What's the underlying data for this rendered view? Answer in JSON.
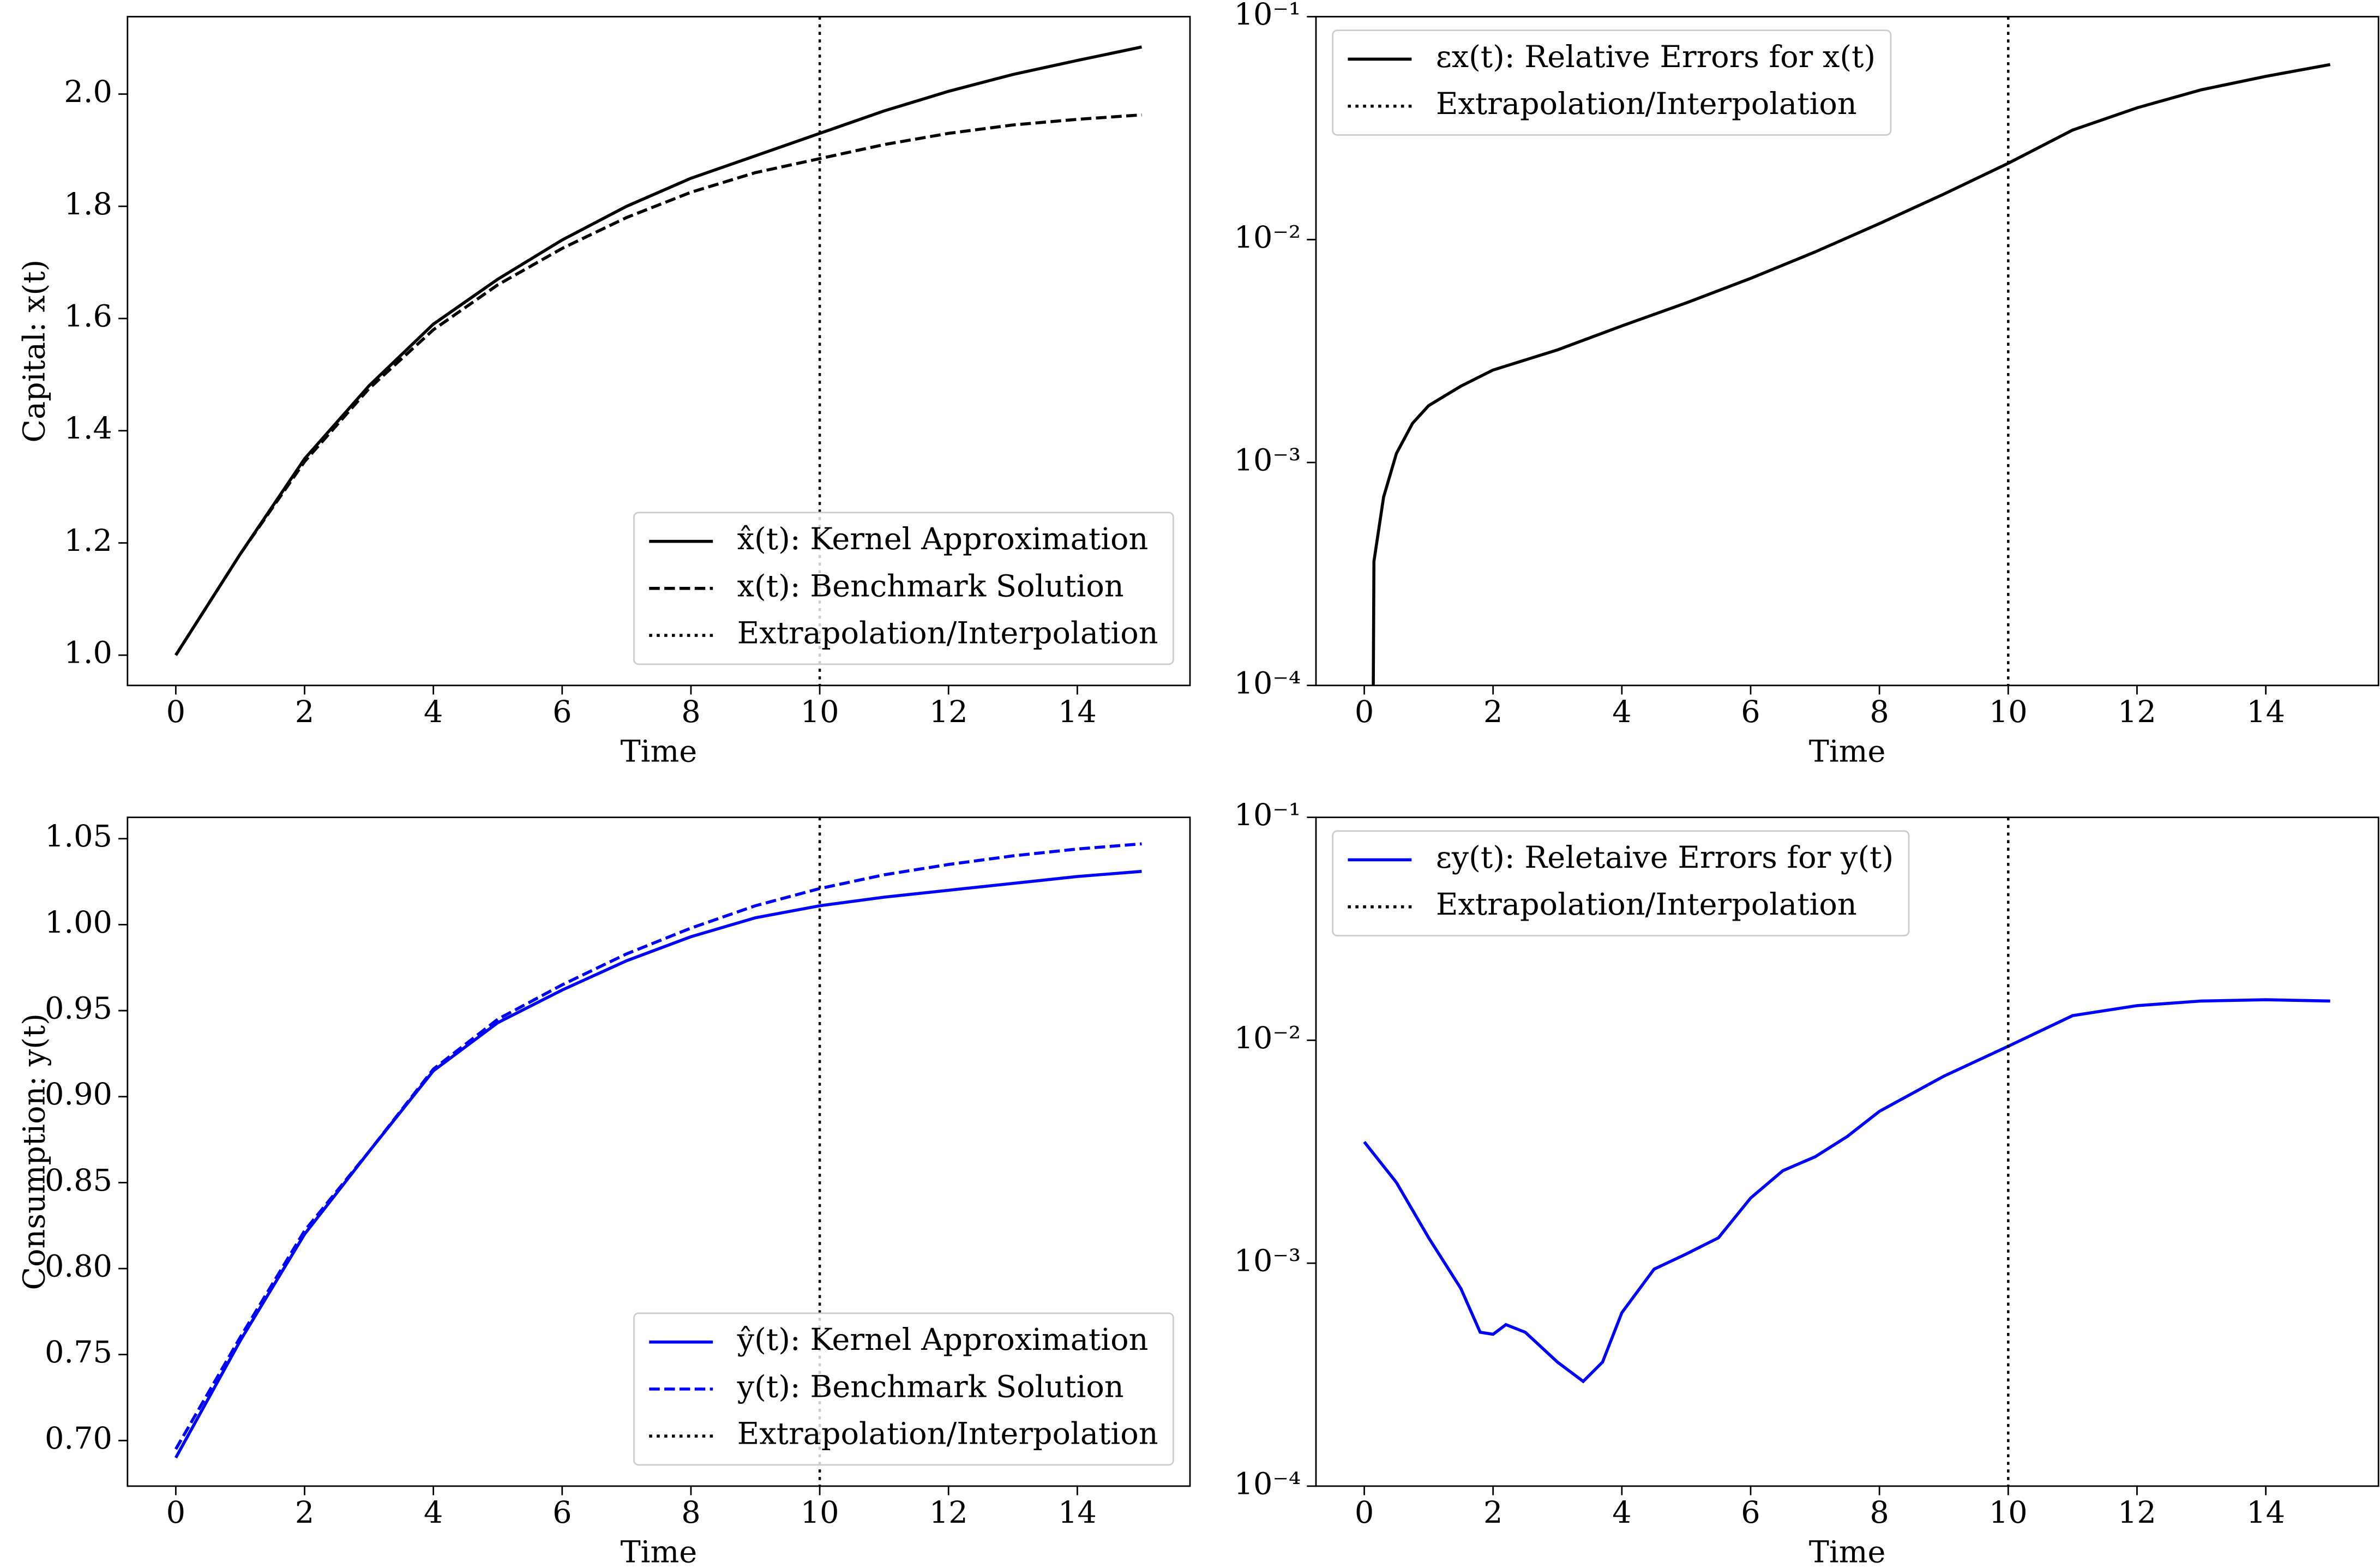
{
  "chart_data": [
    {
      "type": "line",
      "ylabel": "Capital: x(t)",
      "xlabel": "Time",
      "legend": "lower right",
      "xlim": [
        -0.75,
        15.75
      ],
      "ylim": [
        0.946,
        2.138
      ],
      "xticks": [
        0,
        2,
        4,
        6,
        8,
        10,
        12,
        14
      ],
      "yticks": [
        {
          "value": 1,
          "label": "1.0"
        },
        1.2,
        1.4,
        1.6,
        1.8,
        {
          "value": 2,
          "label": "2.0"
        }
      ],
      "x": [
        0,
        1,
        2,
        3,
        4,
        5,
        6,
        7,
        8,
        9,
        10,
        11,
        12,
        13,
        14,
        15
      ],
      "series": [
        {
          "name": "x̂(t): Kernel Approximation",
          "color": "#000000",
          "dash": "solid",
          "values": [
            1.0,
            1.18,
            1.35,
            1.48,
            1.59,
            1.67,
            1.74,
            1.8,
            1.85,
            1.89,
            1.93,
            1.97,
            2.005,
            2.035,
            2.06,
            2.084
          ]
        },
        {
          "name": "x(t): Benchmark Solution",
          "color": "#000000",
          "dash": "dashed",
          "values": [
            1.0,
            1.18,
            1.345,
            1.475,
            1.58,
            1.66,
            1.725,
            1.78,
            1.825,
            1.86,
            1.885,
            1.91,
            1.93,
            1.945,
            1.955,
            1.963
          ]
        }
      ],
      "vline": {
        "x": 10,
        "label": "Extrapolation/Interpolation",
        "color": "#000000",
        "dash": "dotted"
      }
    },
    {
      "type": "line",
      "xlabel": "Time",
      "legend": "upper left",
      "log_y": true,
      "xlim": [
        -0.75,
        15.75
      ],
      "ylim": [
        0.0001,
        0.1
      ],
      "xticks": [
        0,
        2,
        4,
        6,
        8,
        10,
        12,
        14
      ],
      "yticks": [
        {
          "value": 0.0001,
          "label": "10⁻⁴"
        },
        {
          "value": 0.001,
          "label": "10⁻³"
        },
        {
          "value": 0.01,
          "label": "10⁻²"
        },
        {
          "value": 0.1,
          "label": "10⁻¹"
        }
      ],
      "x": [
        0.14,
        0.15,
        0.3,
        0.5,
        0.75,
        1,
        1.5,
        2,
        3,
        4,
        5,
        6,
        7,
        8,
        9,
        10,
        11,
        12,
        13,
        14,
        15
      ],
      "series": [
        {
          "name": "εx(t): Relative Errors for x(t)",
          "color": "#000000",
          "dash": "solid",
          "values": [
            0.0001,
            0.00036,
            0.0007,
            0.0011,
            0.0015,
            0.0018,
            0.0022,
            0.0026,
            0.0032,
            0.0041,
            0.0052,
            0.0067,
            0.0088,
            0.0118,
            0.016,
            0.022,
            0.031,
            0.039,
            0.047,
            0.054,
            0.061
          ]
        }
      ],
      "vline": {
        "x": 10,
        "label": "Extrapolation/Interpolation",
        "color": "#000000",
        "dash": "dotted"
      }
    },
    {
      "type": "line",
      "ylabel": "Consumption: y(t)",
      "xlabel": "Time",
      "legend": "lower right",
      "xlim": [
        -0.75,
        15.75
      ],
      "ylim": [
        0.6735,
        1.0624
      ],
      "xticks": [
        0,
        2,
        4,
        6,
        8,
        10,
        12,
        14
      ],
      "yticks": [
        {
          "value": 0.7,
          "label": "0.70"
        },
        0.75,
        {
          "value": 0.8,
          "label": "0.80"
        },
        0.85,
        {
          "value": 0.9,
          "label": "0.90"
        },
        0.95,
        {
          "value": 1,
          "label": "1.00"
        },
        1.05
      ],
      "x": [
        0,
        1,
        2,
        3,
        4,
        5,
        6,
        7,
        8,
        9,
        10,
        11,
        12,
        13,
        14,
        15
      ],
      "series": [
        {
          "name": "ŷ(t): Kernel Approximation",
          "color": "#0000ff",
          "dash": "solid",
          "values": [
            0.69,
            0.758,
            0.82,
            0.868,
            0.915,
            0.943,
            0.962,
            0.979,
            0.993,
            1.004,
            1.011,
            1.016,
            1.02,
            1.024,
            1.028,
            1.031
          ]
        },
        {
          "name": "y(t): Benchmark Solution",
          "color": "#0000ff",
          "dash": "dashed",
          "values": [
            0.695,
            0.76,
            0.822,
            0.868,
            0.916,
            0.945,
            0.965,
            0.983,
            0.998,
            1.011,
            1.021,
            1.029,
            1.035,
            1.04,
            1.044,
            1.047
          ]
        }
      ],
      "vline": {
        "x": 10,
        "label": "Extrapolation/Interpolation",
        "color": "#000000",
        "dash": "dotted"
      }
    },
    {
      "type": "line",
      "xlabel": "Time",
      "legend": "upper left",
      "log_y": true,
      "xlim": [
        -0.75,
        15.75
      ],
      "ylim": [
        0.0001,
        0.1
      ],
      "xticks": [
        0,
        2,
        4,
        6,
        8,
        10,
        12,
        14
      ],
      "yticks": [
        {
          "value": 0.0001,
          "label": "10⁻⁴"
        },
        {
          "value": 0.001,
          "label": "10⁻³"
        },
        {
          "value": 0.01,
          "label": "10⁻²"
        },
        {
          "value": 0.1,
          "label": "10⁻¹"
        }
      ],
      "x": [
        0,
        0.5,
        1,
        1.5,
        1.8,
        2,
        2.2,
        2.5,
        3,
        3.4,
        3.7,
        4,
        4.5,
        5,
        5.5,
        6,
        6.5,
        7,
        7.5,
        8,
        9,
        10,
        11,
        12,
        13,
        14,
        15
      ],
      "series": [
        {
          "name": "εy(t): Reletaive Errors for y(t)",
          "color": "#0000ff",
          "dash": "solid",
          "values": [
            0.0035,
            0.0023,
            0.0013,
            0.00077,
            0.00049,
            0.00048,
            0.00053,
            0.00049,
            0.00036,
            0.000295,
            0.00036,
            0.0006,
            0.00094,
            0.0011,
            0.0013,
            0.00196,
            0.0026,
            0.003,
            0.0037,
            0.0048,
            0.0069,
            0.0094,
            0.0129,
            0.0143,
            0.015,
            0.0152,
            0.015
          ]
        }
      ],
      "vline": {
        "x": 10,
        "label": "Extrapolation/Interpolation",
        "color": "#000000",
        "dash": "dotted"
      }
    }
  ]
}
